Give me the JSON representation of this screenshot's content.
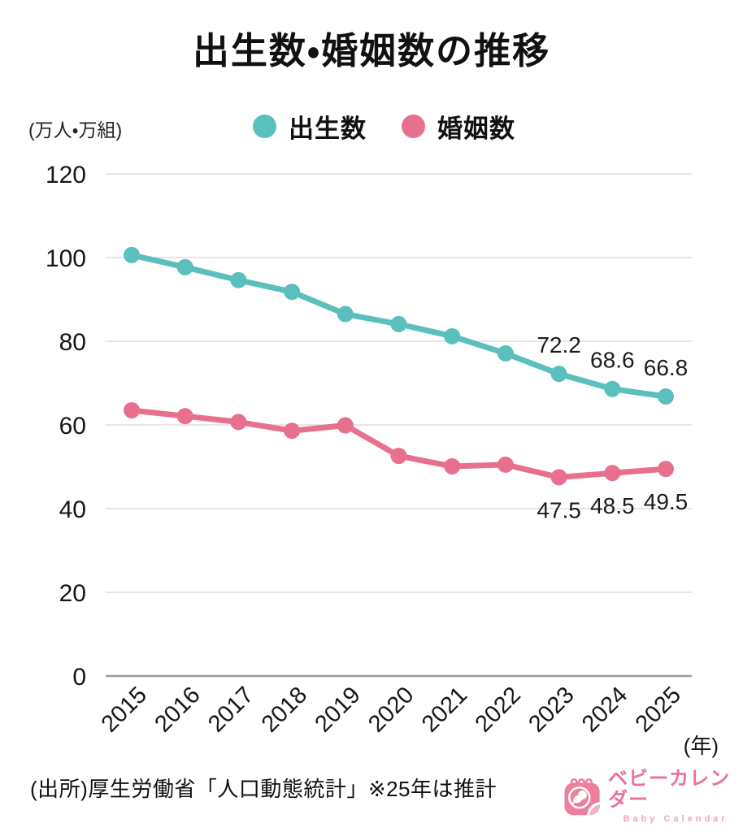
{
  "page": {
    "source_note": "(出所)厚生労働省「人口動態統計」※25年は推計",
    "brand": {
      "name": "ベビーカレンダー",
      "name_en": "Baby Calendar",
      "color": "#eb7f9c"
    }
  },
  "chart_data": {
    "type": "line",
    "title": "出生数・婚姻数の推移",
    "unit_label": "(万人・万組)",
    "x_axis_unit": "(年)",
    "categories": [
      "2015",
      "2016",
      "2017",
      "2018",
      "2019",
      "2020",
      "2021",
      "2022",
      "2023",
      "2024",
      "2025"
    ],
    "yticks": [
      0,
      20,
      40,
      60,
      80,
      100,
      120
    ],
    "ylim": [
      0,
      120
    ],
    "grid": true,
    "legend_position": "top",
    "note": "25年は推計",
    "series": [
      {
        "name": "出生数",
        "color": "#5bbfbd",
        "values": [
          100.6,
          97.7,
          94.6,
          91.8,
          86.5,
          84.1,
          81.2,
          77.1,
          72.2,
          68.6,
          66.8
        ],
        "point_labels": [
          "",
          "",
          "",
          "",
          "",
          "",
          "",
          "",
          "72.2",
          "68.6",
          "66.8"
        ]
      },
      {
        "name": "婚姻数",
        "color": "#e7708f",
        "values": [
          63.5,
          62.1,
          60.7,
          58.6,
          59.9,
          52.6,
          50.1,
          50.5,
          47.5,
          48.5,
          49.5
        ],
        "point_labels": [
          "",
          "",
          "",
          "",
          "",
          "",
          "",
          "",
          "47.5",
          "48.5",
          "49.5"
        ]
      }
    ]
  }
}
